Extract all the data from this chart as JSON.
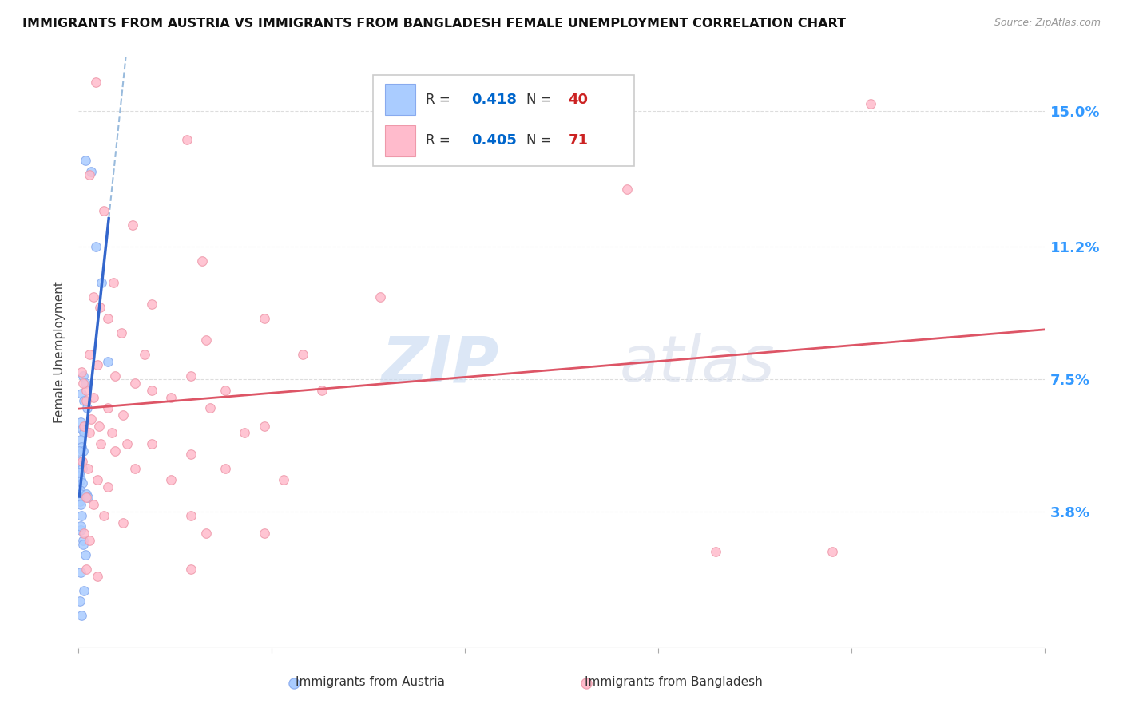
{
  "title": "IMMIGRANTS FROM AUSTRIA VS IMMIGRANTS FROM BANGLADESH FEMALE UNEMPLOYMENT CORRELATION CHART",
  "source": "Source: ZipAtlas.com",
  "ylabel": "Female Unemployment",
  "ytick_labels": [
    "3.8%",
    "7.5%",
    "11.2%",
    "15.0%"
  ],
  "ytick_values": [
    3.8,
    7.5,
    11.2,
    15.0
  ],
  "xlim": [
    0.0,
    25.0
  ],
  "ylim": [
    0.0,
    16.5
  ],
  "watermark_zip": "ZIP",
  "watermark_atlas": "atlas",
  "austria_color": "#aaccff",
  "bangladesh_color": "#ffbbcc",
  "austria_edge": "#88aaee",
  "bangladesh_edge": "#ee99aa",
  "background_color": "#ffffff",
  "grid_color": "#dddddd",
  "marker_size": 70,
  "austria_line_color": "#3366cc",
  "bangladesh_line_color": "#dd5566",
  "austria_dash_color": "#99bbdd",
  "legend_R_color": "#0066cc",
  "legend_N_color": "#cc2222",
  "austria_points": [
    [
      0.18,
      13.6
    ],
    [
      0.32,
      13.3
    ],
    [
      0.45,
      11.2
    ],
    [
      0.6,
      10.2
    ],
    [
      0.75,
      8.0
    ],
    [
      0.12,
      7.6
    ],
    [
      0.18,
      7.4
    ],
    [
      0.08,
      7.1
    ],
    [
      0.14,
      6.9
    ],
    [
      0.22,
      6.7
    ],
    [
      0.06,
      6.3
    ],
    [
      0.1,
      6.1
    ],
    [
      0.14,
      6.0
    ],
    [
      0.05,
      5.8
    ],
    [
      0.08,
      5.6
    ],
    [
      0.11,
      5.5
    ],
    [
      0.04,
      5.2
    ],
    [
      0.07,
      5.1
    ],
    [
      0.09,
      5.0
    ],
    [
      0.04,
      4.8
    ],
    [
      0.06,
      4.7
    ],
    [
      0.09,
      4.6
    ],
    [
      0.03,
      4.4
    ],
    [
      0.05,
      4.3
    ],
    [
      0.03,
      4.1
    ],
    [
      0.06,
      4.0
    ],
    [
      0.19,
      4.3
    ],
    [
      0.24,
      4.2
    ],
    [
      0.08,
      3.7
    ],
    [
      0.05,
      3.3
    ],
    [
      0.12,
      3.0
    ],
    [
      0.18,
      2.6
    ],
    [
      0.06,
      2.1
    ],
    [
      0.14,
      1.6
    ],
    [
      0.04,
      1.3
    ],
    [
      0.07,
      0.9
    ],
    [
      0.05,
      3.4
    ],
    [
      0.11,
      2.9
    ],
    [
      0.02,
      5.5
    ],
    [
      0.02,
      4.9
    ]
  ],
  "bangladesh_points": [
    [
      0.45,
      15.8
    ],
    [
      0.28,
      13.2
    ],
    [
      2.8,
      14.2
    ],
    [
      0.65,
      12.2
    ],
    [
      1.4,
      11.8
    ],
    [
      3.2,
      10.8
    ],
    [
      0.9,
      10.2
    ],
    [
      0.38,
      9.8
    ],
    [
      1.9,
      9.6
    ],
    [
      0.75,
      9.2
    ],
    [
      1.1,
      8.8
    ],
    [
      1.7,
      8.2
    ],
    [
      3.3,
      8.6
    ],
    [
      4.8,
      9.2
    ],
    [
      7.8,
      9.8
    ],
    [
      14.2,
      12.8
    ],
    [
      20.5,
      15.2
    ],
    [
      0.28,
      8.2
    ],
    [
      0.48,
      7.9
    ],
    [
      0.95,
      7.6
    ],
    [
      1.45,
      7.4
    ],
    [
      1.9,
      7.2
    ],
    [
      2.9,
      7.6
    ],
    [
      3.8,
      7.2
    ],
    [
      5.8,
      8.2
    ],
    [
      0.19,
      7.2
    ],
    [
      0.38,
      7.0
    ],
    [
      0.75,
      6.7
    ],
    [
      1.15,
      6.5
    ],
    [
      2.4,
      7.0
    ],
    [
      3.4,
      6.7
    ],
    [
      4.8,
      6.2
    ],
    [
      6.3,
      7.2
    ],
    [
      0.14,
      6.2
    ],
    [
      0.28,
      6.0
    ],
    [
      0.58,
      5.7
    ],
    [
      0.95,
      5.5
    ],
    [
      1.9,
      5.7
    ],
    [
      2.9,
      5.4
    ],
    [
      4.3,
      6.0
    ],
    [
      0.09,
      5.2
    ],
    [
      0.24,
      5.0
    ],
    [
      0.48,
      4.7
    ],
    [
      0.75,
      4.5
    ],
    [
      1.45,
      5.0
    ],
    [
      2.4,
      4.7
    ],
    [
      3.8,
      5.0
    ],
    [
      0.19,
      4.2
    ],
    [
      0.38,
      4.0
    ],
    [
      0.65,
      3.7
    ],
    [
      1.15,
      3.5
    ],
    [
      2.9,
      3.7
    ],
    [
      5.3,
      4.7
    ],
    [
      0.14,
      3.2
    ],
    [
      0.28,
      3.0
    ],
    [
      3.3,
      3.2
    ],
    [
      4.8,
      3.2
    ],
    [
      0.19,
      2.2
    ],
    [
      0.48,
      2.0
    ],
    [
      2.9,
      2.2
    ],
    [
      16.5,
      2.7
    ],
    [
      19.5,
      2.7
    ],
    [
      0.07,
      7.7
    ],
    [
      0.11,
      7.4
    ],
    [
      0.19,
      6.9
    ],
    [
      0.33,
      6.4
    ],
    [
      0.52,
      6.2
    ],
    [
      0.85,
      6.0
    ],
    [
      1.25,
      5.7
    ],
    [
      0.55,
      9.5
    ]
  ]
}
